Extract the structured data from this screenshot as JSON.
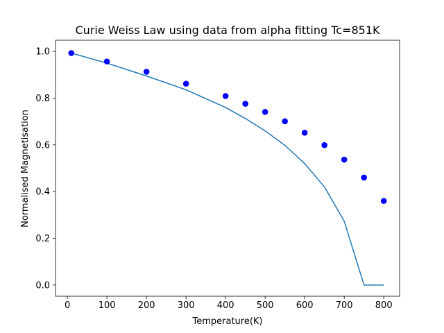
{
  "chart_data": {
    "type": "line",
    "title": "Curie Weiss Law using data from alpha fitting Tc=851K",
    "xlabel": "Temperature(K)",
    "ylabel": "Normalised Magnetisation",
    "xlim": [
      -30,
      840
    ],
    "ylim": [
      -0.048,
      1.048
    ],
    "xticks": [
      0,
      100,
      200,
      300,
      400,
      500,
      600,
      700,
      800
    ],
    "xtick_labels": [
      "0",
      "100",
      "200",
      "300",
      "400",
      "500",
      "600",
      "700",
      "800"
    ],
    "yticks": [
      0.0,
      0.2,
      0.4,
      0.6,
      0.8,
      1.0
    ],
    "ytick_labels": [
      "0.0",
      "0.2",
      "0.4",
      "0.6",
      "0.8",
      "1.0"
    ],
    "grid": false,
    "series": [
      {
        "kind": "line",
        "color": "#1f77b4",
        "x": [
          10,
          100,
          200,
          300,
          400,
          450,
          500,
          550,
          600,
          650,
          700,
          750,
          800
        ],
        "y": [
          0.993,
          0.95,
          0.895,
          0.836,
          0.76,
          0.713,
          0.66,
          0.598,
          0.52,
          0.42,
          0.273,
          0.0,
          0.0
        ]
      },
      {
        "kind": "scatter",
        "color": "#0000ff",
        "x": [
          10,
          100,
          200,
          300,
          400,
          450,
          500,
          550,
          600,
          650,
          700,
          750,
          800
        ],
        "y": [
          0.993,
          0.957,
          0.913,
          0.862,
          0.809,
          0.776,
          0.741,
          0.701,
          0.652,
          0.599,
          0.537,
          0.46,
          0.36
        ]
      }
    ]
  }
}
